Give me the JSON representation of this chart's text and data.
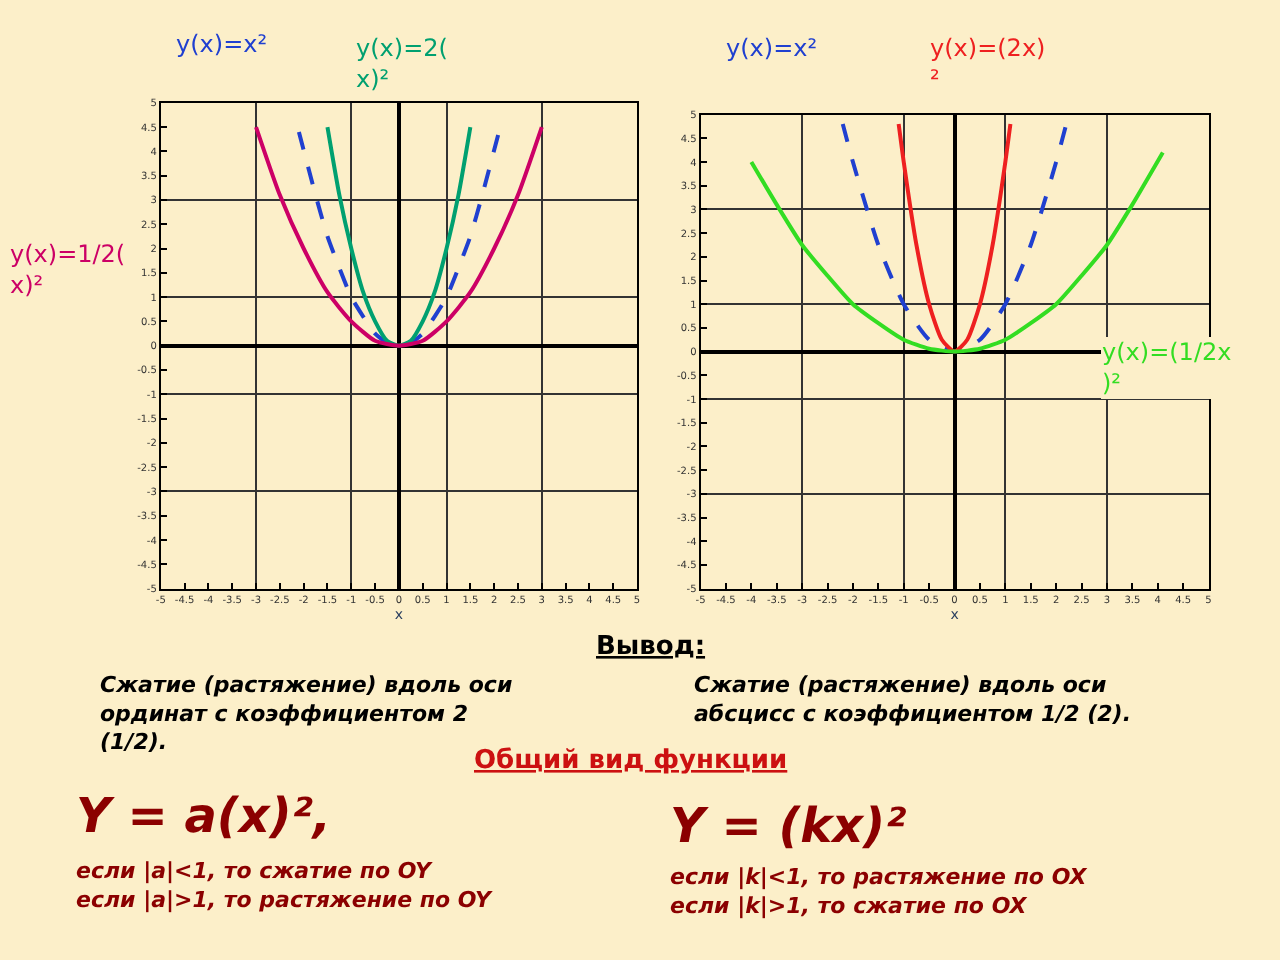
{
  "chart_data": [
    {
      "type": "line",
      "xlabel": "x",
      "xlim": [
        -5,
        5
      ],
      "ylim": [
        -5,
        5
      ],
      "xticks": [
        -5,
        -4.5,
        -4,
        -3.5,
        -3,
        -2.5,
        -2,
        -1.5,
        -1,
        -0.5,
        0,
        0.5,
        1,
        1.5,
        2,
        2.5,
        3,
        3.5,
        4,
        4.5,
        5
      ],
      "yticks": [
        -5,
        -4.5,
        -4,
        -3.5,
        -3,
        -2.5,
        -2,
        -1.5,
        -1,
        -0.5,
        0,
        0.5,
        1,
        1.5,
        2,
        2.5,
        3,
        3.5,
        4,
        4.5,
        5
      ],
      "grid": true,
      "series": [
        {
          "name": "y(x)=x²",
          "color": "#2040d0",
          "line_style": "dashed",
          "x": [
            -2.1,
            -1.75,
            -1.5,
            -1.25,
            -1,
            -0.75,
            -0.5,
            -0.25,
            0,
            0.25,
            0.5,
            0.75,
            1,
            1.25,
            1.5,
            1.75,
            2.1
          ],
          "values": [
            4.4,
            3.1,
            2.25,
            1.6,
            1,
            0.6,
            0.25,
            0.06,
            0,
            0.06,
            0.25,
            0.6,
            1,
            1.6,
            2.25,
            3.1,
            4.4
          ]
        },
        {
          "name": "y(x)=2(\nx)²",
          "color": "#00a070",
          "line_style": "solid",
          "x": [
            -1.5,
            -1.25,
            -1,
            -0.75,
            -0.5,
            -0.25,
            0,
            0.25,
            0.5,
            0.75,
            1,
            1.25,
            1.5
          ],
          "values": [
            4.5,
            3.1,
            2,
            1.1,
            0.5,
            0.1,
            0,
            0.1,
            0.5,
            1.1,
            2,
            3.1,
            4.5
          ]
        },
        {
          "name": "y(x)=1/2(\nx)²",
          "color": "#cc0066",
          "line_style": "solid",
          "x": [
            -3,
            -2.5,
            -2,
            -1.5,
            -1,
            -0.5,
            0,
            0.5,
            1,
            1.5,
            2,
            2.5,
            3
          ],
          "values": [
            4.5,
            3.1,
            2,
            1.1,
            0.5,
            0.1,
            0,
            0.1,
            0.5,
            1.1,
            2,
            3.1,
            4.5
          ]
        }
      ]
    },
    {
      "type": "line",
      "xlabel": "x",
      "xlim": [
        -5,
        5
      ],
      "ylim": [
        -5,
        5
      ],
      "xticks": [
        -5,
        -4.5,
        -4,
        -3.5,
        -3,
        -2.5,
        -2,
        -1.5,
        -1,
        -0.5,
        0,
        0.5,
        1,
        1.5,
        2,
        2.5,
        3,
        3.5,
        4,
        4.5,
        5
      ],
      "yticks": [
        -5,
        -4.5,
        -4,
        -3.5,
        -3,
        -2.5,
        -2,
        -1.5,
        -1,
        -0.5,
        0,
        0.5,
        1,
        1.5,
        2,
        2.5,
        3,
        3.5,
        4,
        4.5,
        5
      ],
      "grid": true,
      "series": [
        {
          "name": "y(x)=x²",
          "color": "#2040d0",
          "line_style": "dashed",
          "x": [
            -2.2,
            -2,
            -1.5,
            -1,
            -0.5,
            0,
            0.5,
            1,
            1.5,
            2,
            2.2
          ],
          "values": [
            4.8,
            4,
            2.25,
            1,
            0.25,
            0,
            0.25,
            1,
            2.25,
            4,
            4.8
          ]
        },
        {
          "name": "y(x)=(2x)\n²",
          "color": "#ee2020",
          "line_style": "solid",
          "x": [
            -1.1,
            -1,
            -0.75,
            -0.5,
            -0.25,
            0,
            0.25,
            0.5,
            0.75,
            1,
            1.1
          ],
          "values": [
            4.8,
            4,
            2.25,
            1,
            0.25,
            0,
            0.25,
            1,
            2.25,
            4,
            4.8
          ]
        },
        {
          "name": "y(x)=(1/2x\n)²",
          "color": "#33dd22",
          "line_style": "solid",
          "x": [
            -4,
            -3.5,
            -3,
            -2.5,
            -2,
            -1.5,
            -1,
            -0.5,
            0,
            0.5,
            1,
            1.5,
            2,
            2.5,
            3,
            3.5,
            4.1
          ],
          "values": [
            4,
            3.1,
            2.25,
            1.6,
            1,
            0.6,
            0.25,
            0.06,
            0,
            0.06,
            0.25,
            0.6,
            1,
            1.6,
            2.25,
            3.1,
            4.2
          ]
        }
      ]
    },
    {
      "type": "other",
      "annotations": [
        "Вывод:",
        "Сжатие (растяжение) вдоль оси\nординат с коэффициентом 2\n(1/2).",
        "Сжатие (растяжение) вдоль оси\nабсцисс с коэффициентом 1/2 (2).",
        "Общий вид функции",
        "Y = a(x)²,",
        "если |a|<1, то сжатие по OY\nесли |a|>1, то растяжение по OY",
        "Y = (kx)²",
        "если |k|<1, то растяжение по OX\nесли |k|>1, то сжатие по OX"
      ]
    }
  ]
}
